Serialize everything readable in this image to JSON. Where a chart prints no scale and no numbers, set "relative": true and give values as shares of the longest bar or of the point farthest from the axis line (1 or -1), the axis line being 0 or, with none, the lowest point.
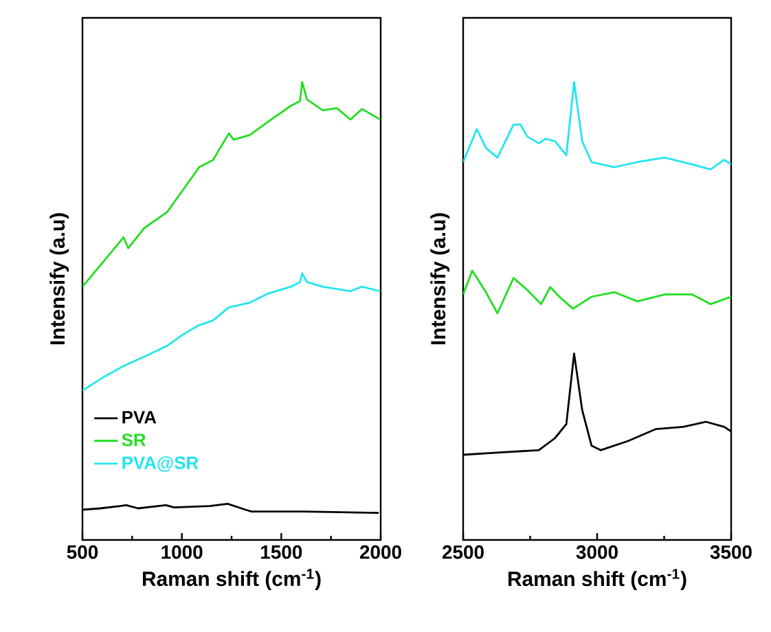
{
  "chart_data": [
    {
      "type": "line",
      "relative": true,
      "xlabel": "Raman shift (cm$^{-1}$)",
      "ylabel": "Intensify (a.u)",
      "xlim": [
        500,
        2000
      ],
      "xticks": [
        500,
        1000,
        1500,
        2000
      ],
      "legend": "bottom left",
      "line_style": "solid",
      "marker": "none",
      "series": [
        {
          "name": "PVA",
          "color": "#000000",
          "x": [
            500,
            590,
            690,
            720,
            780,
            920,
            960,
            1140,
            1230,
            1320,
            1350,
            1610,
            1990
          ],
          "values": [
            0.066,
            0.069,
            0.074,
            0.076,
            0.069,
            0.076,
            0.071,
            0.074,
            0.079,
            0.066,
            0.062,
            0.062,
            0.059
          ]
        },
        {
          "name": "SR",
          "color": "#22dd22",
          "x": [
            500,
            604,
            707,
            730,
            811,
            926,
            1007,
            1087,
            1156,
            1237,
            1260,
            1341,
            1433,
            1548,
            1594,
            1605,
            1629,
            1709,
            1779,
            1848,
            1906,
            1998
          ],
          "values": [
            0.553,
            0.607,
            0.661,
            0.637,
            0.681,
            0.716,
            0.765,
            0.814,
            0.829,
            0.888,
            0.874,
            0.884,
            0.913,
            0.948,
            0.958,
            1.0,
            0.962,
            0.938,
            0.943,
            0.918,
            0.941,
            0.918
          ]
        },
        {
          "name": "PVA@SR",
          "color": "#22e5f0",
          "x": [
            500,
            604,
            707,
            811,
            926,
            1007,
            1087,
            1156,
            1237,
            1341,
            1433,
            1548,
            1594,
            1605,
            1629,
            1709,
            1779,
            1848,
            1906,
            1998
          ],
          "values": [
            0.326,
            0.355,
            0.38,
            0.4,
            0.424,
            0.449,
            0.469,
            0.479,
            0.508,
            0.518,
            0.538,
            0.553,
            0.563,
            0.582,
            0.563,
            0.553,
            0.548,
            0.543,
            0.553,
            0.543
          ]
        }
      ]
    },
    {
      "type": "line",
      "relative": true,
      "xlabel": "Raman shift (cm$^{-1}$)",
      "ylabel": "Intensify (a.u)",
      "xlim": [
        2500,
        3500
      ],
      "xticks": [
        2500,
        3000,
        3500
      ],
      "line_style": "solid",
      "marker": "none",
      "series": [
        {
          "color": "#000000",
          "x": [
            2500,
            2637,
            2782,
            2842,
            2885,
            2914,
            2944,
            2979,
            3013,
            3115,
            3218,
            3321,
            3406,
            3474,
            3500
          ],
          "values": [
            0.186,
            0.191,
            0.196,
            0.222,
            0.253,
            0.407,
            0.284,
            0.206,
            0.196,
            0.216,
            0.242,
            0.247,
            0.258,
            0.247,
            0.237
          ]
        },
        {
          "color": "#22dd22",
          "x": [
            2500,
            2534,
            2585,
            2628,
            2688,
            2739,
            2791,
            2825,
            2859,
            2910,
            2979,
            3064,
            3150,
            3252,
            3355,
            3423,
            3500
          ],
          "values": [
            0.536,
            0.588,
            0.541,
            0.495,
            0.572,
            0.546,
            0.515,
            0.552,
            0.531,
            0.505,
            0.531,
            0.541,
            0.521,
            0.536,
            0.536,
            0.515,
            0.531
          ]
        },
        {
          "color": "#22e5f0",
          "x": [
            2500,
            2551,
            2585,
            2628,
            2688,
            2714,
            2739,
            2782,
            2808,
            2842,
            2885,
            2914,
            2944,
            2979,
            3064,
            3150,
            3252,
            3355,
            3423,
            3474,
            3500
          ],
          "values": [
            0.825,
            0.897,
            0.856,
            0.835,
            0.907,
            0.907,
            0.881,
            0.866,
            0.876,
            0.871,
            0.84,
            1.0,
            0.871,
            0.825,
            0.814,
            0.825,
            0.835,
            0.82,
            0.809,
            0.83,
            0.82
          ]
        }
      ]
    }
  ]
}
